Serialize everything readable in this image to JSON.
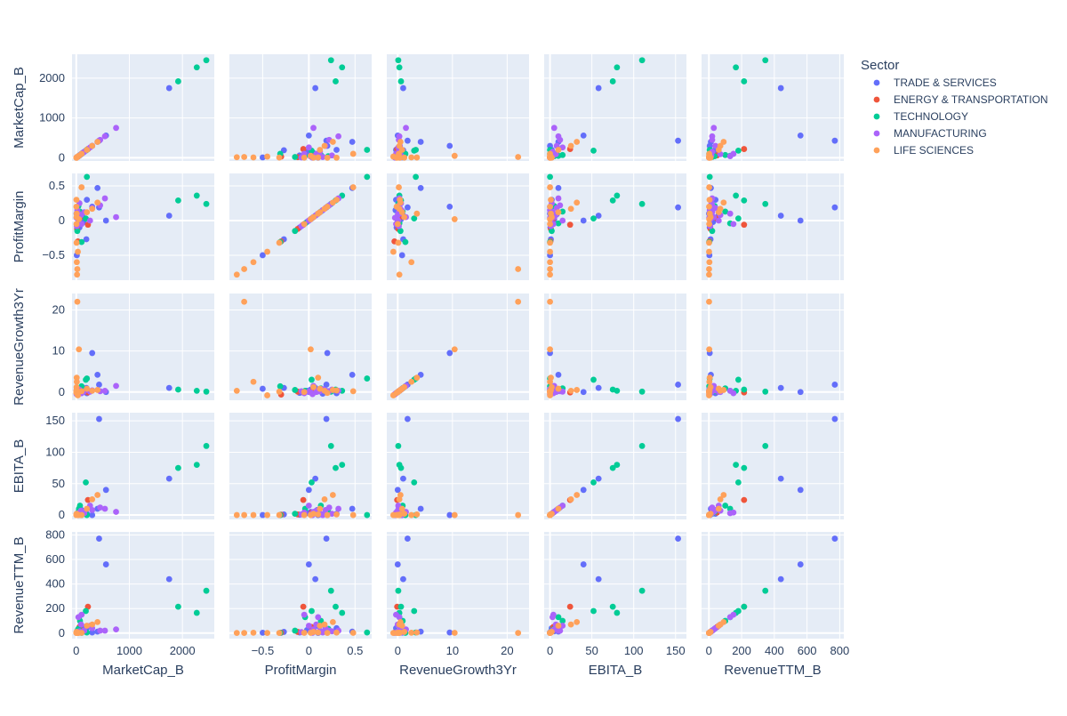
{
  "chart_data": {
    "type": "scatter",
    "subtype": "scatter-matrix",
    "dimensions": [
      "MarketCap_B",
      "ProfitMargin",
      "RevenueGrowth3Yr",
      "EBITA_B",
      "RevenueTTM_B"
    ],
    "axes": {
      "MarketCap_B": {
        "range": [
          -80,
          2600
        ],
        "ticks": [
          0,
          1000,
          2000
        ],
        "tick_labels": [
          "0",
          "1000",
          "2000"
        ]
      },
      "ProfitMargin": {
        "range": [
          -0.86,
          0.68
        ],
        "ticks": [
          -0.5,
          0,
          0.5
        ],
        "tick_labels": [
          "−0.5",
          "0",
          "0.5"
        ]
      },
      "RevenueGrowth3Yr": {
        "range": [
          -2,
          24
        ],
        "ticks": [
          0,
          10,
          20
        ],
        "tick_labels": [
          "0",
          "10",
          "20"
        ]
      },
      "EBITA_B": {
        "range": [
          -7,
          163
        ],
        "ticks": [
          0,
          50,
          100,
          150
        ],
        "tick_labels": [
          "0",
          "50",
          "100",
          "150"
        ]
      },
      "RevenueTTM_B": {
        "range": [
          -45,
          825
        ],
        "ticks": [
          0,
          200,
          400,
          600,
          800
        ],
        "tick_labels": [
          "0",
          "200",
          "400",
          "600",
          "800"
        ]
      }
    },
    "legend": {
      "title": "Sector",
      "position": "top-right"
    },
    "grid": true,
    "series": [
      {
        "name": "TRADE & SERVICES",
        "color": "#636efa",
        "points": [
          [
            1750,
            0.07,
            1.0,
            58,
            440
          ],
          [
            560,
            0.0,
            0.0,
            40,
            560
          ],
          [
            430,
            0.19,
            1.8,
            153,
            770
          ],
          [
            400,
            0.47,
            4.2,
            10,
            12
          ],
          [
            300,
            0.2,
            9.5,
            0,
            5
          ],
          [
            200,
            0.3,
            -0.3,
            2,
            40
          ],
          [
            190,
            -0.27,
            1.0,
            1,
            10
          ],
          [
            140,
            -0.02,
            0.3,
            3,
            25
          ],
          [
            120,
            0.05,
            0.4,
            2,
            18
          ],
          [
            100,
            0.09,
            0.1,
            8,
            60
          ],
          [
            80,
            0.02,
            0.6,
            5,
            15
          ],
          [
            60,
            -0.1,
            -0.2,
            0.5,
            5
          ],
          [
            40,
            0.12,
            0.2,
            1,
            12
          ],
          [
            25,
            0.15,
            -0.4,
            1,
            8
          ],
          [
            10,
            -0.5,
            0.8,
            0,
            3
          ],
          [
            5,
            0.1,
            0.3,
            0,
            1
          ]
        ]
      },
      {
        "name": "ENERGY & TRANSPORTATION",
        "color": "#EF553B",
        "points": [
          [
            220,
            -0.06,
            -0.1,
            24,
            215
          ],
          [
            60,
            0.03,
            0.2,
            4,
            50
          ],
          [
            30,
            -0.3,
            -0.6,
            0.5,
            3
          ],
          [
            15,
            -0.12,
            0.1,
            1,
            10
          ]
        ]
      },
      {
        "name": "TECHNOLOGY",
        "color": "#00cc96",
        "points": [
          [
            2450,
            0.24,
            0.1,
            110,
            345
          ],
          [
            2270,
            0.36,
            0.3,
            80,
            165
          ],
          [
            1920,
            0.29,
            0.6,
            75,
            215
          ],
          [
            200,
            0.63,
            3.3,
            0,
            5
          ],
          [
            180,
            0.03,
            3.0,
            52,
            180
          ],
          [
            100,
            -0.31,
            1.4,
            0,
            2
          ],
          [
            70,
            0.13,
            0.9,
            15,
            100
          ],
          [
            50,
            -0.04,
            0.3,
            10,
            130
          ],
          [
            40,
            0.21,
            0.2,
            5,
            35
          ],
          [
            20,
            -0.15,
            0.5,
            2,
            20
          ]
        ]
      },
      {
        "name": "MANUFACTURING",
        "color": "#ab63fa",
        "points": [
          [
            750,
            0.05,
            1.5,
            5,
            30
          ],
          [
            540,
            0.32,
            0.3,
            10,
            20
          ],
          [
            450,
            0.22,
            0.2,
            12,
            20
          ],
          [
            300,
            0.18,
            0.4,
            8,
            40
          ],
          [
            260,
            0.0,
            0.1,
            15,
            60
          ],
          [
            150,
            0.12,
            0.2,
            3,
            20
          ],
          [
            100,
            -0.05,
            -0.3,
            4,
            150
          ],
          [
            90,
            0.08,
            0.0,
            7,
            70
          ],
          [
            60,
            0.25,
            0.6,
            2,
            15
          ],
          [
            40,
            0.1,
            0.3,
            3,
            130
          ],
          [
            30,
            0.02,
            -0.1,
            1,
            10
          ],
          [
            20,
            0.15,
            0.7,
            0,
            5
          ],
          [
            10,
            -0.08,
            0.2,
            1,
            8
          ],
          [
            5,
            0.04,
            -0.5,
            0,
            2
          ]
        ]
      },
      {
        "name": "LIFE SCIENCES",
        "color": "#FFA15A",
        "points": [
          [
            400,
            0.26,
            0.5,
            32,
            90
          ],
          [
            300,
            0.17,
            0.3,
            25,
            70
          ],
          [
            200,
            0.12,
            0.8,
            10,
            60
          ],
          [
            100,
            0.48,
            0.2,
            0,
            2
          ],
          [
            50,
            0.02,
            10.4,
            0,
            2
          ],
          [
            30,
            -0.45,
            -0.8,
            0,
            1
          ],
          [
            20,
            -0.7,
            22.0,
            0,
            1
          ],
          [
            15,
            -0.78,
            0.3,
            0,
            1
          ],
          [
            10,
            -0.6,
            2.5,
            0,
            3
          ],
          [
            8,
            0.1,
            3.5,
            1,
            5
          ],
          [
            6,
            -0.32,
            0.1,
            0,
            1
          ],
          [
            5,
            0.05,
            1.2,
            2,
            10
          ],
          [
            4,
            -0.05,
            0.0,
            0,
            2
          ],
          [
            3,
            0.3,
            0.4,
            1,
            4
          ],
          [
            2,
            0.2,
            -0.2,
            0,
            1
          ]
        ]
      }
    ]
  }
}
